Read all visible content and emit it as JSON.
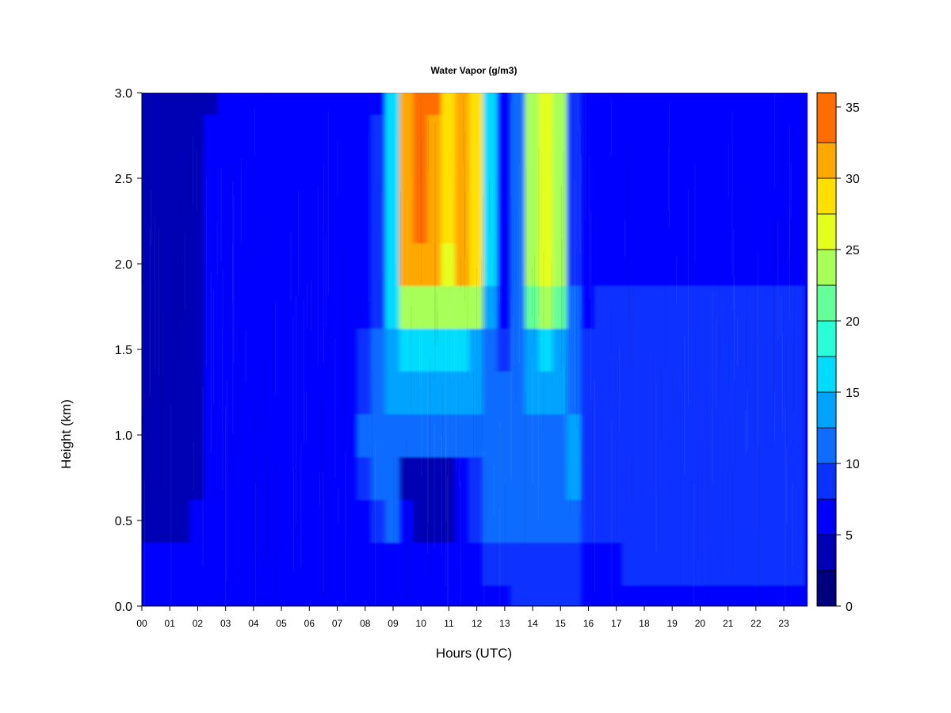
{
  "chart_data": {
    "type": "heatmap",
    "title": "Water Vapor (g/m3)",
    "xlabel": "Hours (UTC)",
    "ylabel": "Height (km)",
    "xlim": [
      0,
      23.85
    ],
    "ylim": [
      0,
      3.0
    ],
    "x_ticks": [
      "00",
      "01",
      "02",
      "03",
      "04",
      "05",
      "06",
      "07",
      "08",
      "09",
      "10",
      "11",
      "12",
      "13",
      "14",
      "15",
      "16",
      "17",
      "18",
      "19",
      "20",
      "21",
      "22",
      "23"
    ],
    "y_ticks": [
      "0.0",
      "0.5",
      "1.0",
      "1.5",
      "2.0",
      "2.5",
      "3.0"
    ],
    "colorbar": {
      "levels": [
        0,
        2.5,
        5,
        7.5,
        10,
        12.5,
        15,
        17.5,
        20,
        22.5,
        25,
        27.5,
        30,
        32.5,
        36
      ],
      "colors": [
        "#00007f",
        "#0000b4",
        "#0000ff",
        "#0a32ff",
        "#0f6cff",
        "#00a4ff",
        "#00dcff",
        "#28ffd6",
        "#64ff98",
        "#a8ff58",
        "#e4ff1c",
        "#ffe000",
        "#ffa800",
        "#ff6c00",
        "#ff2c00",
        "#d20000",
        "#8c0000"
      ],
      "tick_labels": [
        "0",
        "5",
        "10",
        "15",
        "20",
        "25",
        "30",
        "35"
      ]
    },
    "x_hours": [
      0.0,
      0.5,
      1.0,
      1.5,
      2.0,
      2.5,
      3.0,
      3.5,
      4.0,
      4.5,
      5.0,
      5.5,
      6.0,
      6.5,
      7.0,
      7.5,
      8.0,
      8.5,
      9.0,
      9.5,
      10.0,
      10.5,
      11.0,
      11.5,
      12.0,
      12.5,
      13.0,
      13.5,
      14.0,
      14.5,
      15.0,
      15.5,
      16.0,
      16.5,
      17.0,
      17.5,
      18.0,
      18.5,
      19.0,
      19.5,
      20.0,
      20.5,
      21.0,
      21.5,
      22.0,
      22.5,
      23.0,
      23.5
    ],
    "y_heights_km": [
      0.0,
      0.25,
      0.5,
      0.75,
      1.0,
      1.25,
      1.5,
      1.75,
      2.0,
      2.25,
      2.5,
      2.75,
      3.0
    ],
    "values_by_height": [
      [
        5,
        5,
        5,
        5,
        5,
        5,
        5,
        5,
        5,
        5,
        5,
        5,
        5,
        5,
        5,
        5,
        6,
        6,
        5,
        6,
        6,
        6,
        6,
        6,
        6,
        7,
        7,
        8,
        8,
        8,
        8,
        8,
        7,
        7,
        7,
        7,
        7,
        7,
        7,
        7,
        7,
        7,
        7,
        7,
        7,
        7,
        7,
        7
      ],
      [
        5,
        5,
        5,
        5,
        5,
        5,
        5,
        5,
        5,
        5,
        5,
        5,
        5,
        5,
        5,
        5,
        6,
        7,
        7,
        6,
        6,
        6,
        6,
        6,
        7,
        8,
        8,
        9,
        9,
        9,
        9,
        9,
        7,
        7,
        7,
        8,
        8,
        8,
        8,
        8,
        8,
        8,
        8,
        8,
        8,
        8,
        8,
        8
      ],
      [
        4,
        4,
        4,
        4,
        5,
        5,
        5,
        5,
        5,
        5,
        5,
        5,
        5,
        5,
        5,
        5,
        7,
        9,
        10,
        5,
        4,
        4,
        4,
        5,
        8,
        10,
        10,
        11,
        11,
        11,
        11,
        11,
        8,
        8,
        8,
        8,
        8,
        8,
        9,
        8,
        9,
        8,
        9,
        8,
        8,
        9,
        8,
        8
      ],
      [
        4,
        4,
        3,
        3,
        4,
        5,
        5,
        5,
        5,
        5,
        5,
        5,
        5,
        5,
        6,
        6,
        9,
        12,
        12,
        4,
        4,
        4,
        4,
        5,
        9,
        12,
        12,
        12,
        12,
        12,
        12,
        13,
        9,
        8,
        9,
        9,
        9,
        9,
        9,
        9,
        9,
        9,
        9,
        9,
        9,
        9,
        9,
        8
      ],
      [
        4,
        4,
        3,
        3,
        4,
        5,
        5,
        5,
        5,
        5,
        5,
        5,
        5,
        5,
        6,
        7,
        10,
        12,
        12,
        11,
        11,
        11,
        11,
        12,
        12,
        12,
        12,
        12,
        12,
        12,
        12,
        13,
        9,
        8,
        9,
        9,
        9,
        9,
        9,
        9,
        9,
        9,
        9,
        9,
        9,
        9,
        9,
        8
      ],
      [
        4,
        4,
        4,
        4,
        4,
        5,
        5,
        5,
        5,
        5,
        6,
        6,
        6,
        7,
        7,
        7,
        9,
        12,
        13,
        14,
        14,
        14,
        14,
        14,
        14,
        12,
        11,
        12,
        13,
        13,
        13,
        12,
        9,
        8,
        9,
        9,
        9,
        9,
        9,
        9,
        9,
        9,
        9,
        9,
        9,
        9,
        9,
        8
      ],
      [
        4,
        4,
        4,
        4,
        4,
        5,
        5,
        5,
        5,
        5,
        7,
        7,
        7,
        7,
        7,
        7,
        8,
        10,
        14,
        15,
        15,
        15,
        15,
        15,
        14,
        11,
        8,
        11,
        14,
        15,
        14,
        11,
        8,
        8,
        9,
        9,
        9,
        9,
        9,
        9,
        9,
        9,
        9,
        9,
        9,
        9,
        9,
        8
      ],
      [
        4,
        4,
        4,
        4,
        4,
        5,
        5,
        5,
        5,
        6,
        7,
        7,
        7,
        7,
        7,
        7,
        7,
        8,
        15,
        24,
        24,
        24,
        23,
        24,
        23,
        14,
        6,
        11,
        22,
        23,
        22,
        10,
        7,
        8,
        8,
        8,
        8,
        8,
        8,
        8,
        8,
        8,
        8,
        8,
        8,
        8,
        8,
        8
      ],
      [
        4,
        4,
        4,
        4,
        4,
        5,
        5,
        5,
        5,
        6,
        7,
        7,
        7,
        7,
        7,
        7,
        7,
        8,
        16,
        30,
        31,
        31,
        27,
        31,
        28,
        15,
        5,
        10,
        24,
        26,
        24,
        9,
        6,
        7,
        7,
        7,
        7,
        7,
        7,
        7,
        7,
        7,
        7,
        7,
        7,
        7,
        7,
        7
      ],
      [
        3,
        3,
        3,
        4,
        4,
        5,
        5,
        5,
        5,
        5,
        7,
        7,
        7,
        7,
        7,
        7,
        7,
        8,
        16,
        31,
        33,
        32,
        28,
        32,
        28,
        15,
        5,
        10,
        24,
        26,
        24,
        9,
        6,
        7,
        7,
        7,
        7,
        7,
        7,
        7,
        7,
        7,
        7,
        7,
        7,
        7,
        7,
        7
      ],
      [
        3,
        3,
        3,
        3,
        4,
        5,
        5,
        5,
        5,
        5,
        6,
        7,
        7,
        7,
        7,
        7,
        7,
        8,
        16,
        31,
        33,
        32,
        28,
        32,
        28,
        15,
        5,
        10,
        24,
        26,
        24,
        9,
        6,
        7,
        7,
        7,
        7,
        7,
        7,
        7,
        7,
        7,
        7,
        7,
        7,
        7,
        7,
        7
      ],
      [
        3,
        3,
        3,
        3,
        4,
        5,
        5,
        5,
        5,
        5,
        5,
        5,
        5,
        5,
        6,
        7,
        7,
        8,
        16,
        31,
        33,
        32,
        28,
        32,
        28,
        15,
        5,
        10,
        24,
        26,
        24,
        9,
        6,
        7,
        7,
        7,
        7,
        7,
        7,
        7,
        7,
        7,
        7,
        7,
        7,
        7,
        7,
        7
      ],
      [
        3,
        3,
        3,
        3,
        3,
        4,
        5,
        5,
        5,
        5,
        5,
        5,
        5,
        5,
        5,
        5,
        5,
        7,
        16,
        32,
        34,
        33,
        28,
        32,
        28,
        15,
        5,
        10,
        24,
        26,
        24,
        9,
        6,
        6,
        6,
        6,
        6,
        6,
        6,
        6,
        6,
        6,
        6,
        6,
        6,
        6,
        6,
        6
      ]
    ]
  }
}
